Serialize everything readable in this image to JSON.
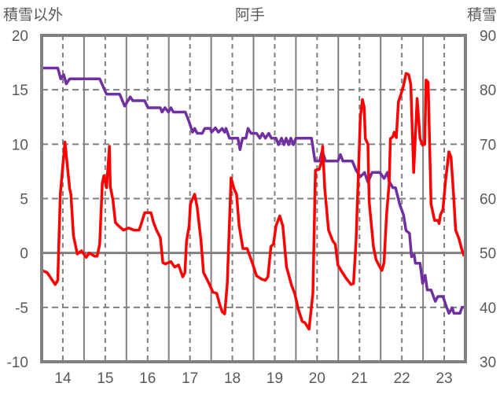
{
  "chart_data": {
    "type": "line",
    "title": "阿手",
    "ylabel_left": "積雪以外",
    "ylabel_right": "積雪",
    "xlabel": "",
    "x_tick_labels": [
      "14",
      "15",
      "16",
      "17",
      "18",
      "19",
      "20",
      "21",
      "22",
      "23"
    ],
    "x_tick_values": [
      14.5,
      15.5,
      16.5,
      17.5,
      18.5,
      19.5,
      20.5,
      21.5,
      22.5,
      23.5
    ],
    "xlim": [
      14,
      24
    ],
    "ylim_left": [
      -10,
      20
    ],
    "yticks_left": [
      20,
      15,
      10,
      5,
      0,
      -5,
      -10
    ],
    "ylim_right": [
      30,
      90
    ],
    "yticks_right": [
      90,
      80,
      70,
      60,
      50,
      40,
      30
    ],
    "grid": true,
    "legend": "none",
    "series": [
      {
        "name": "積雪以外",
        "axis": "left",
        "color": "#ff0000",
        "points": [
          [
            14.01,
            -1.6
          ],
          [
            14.13,
            -1.8
          ],
          [
            14.32,
            -2.9
          ],
          [
            14.38,
            -2.5
          ],
          [
            14.44,
            5.4
          ],
          [
            14.55,
            10.2
          ],
          [
            14.66,
            5.9
          ],
          [
            14.69,
            5.4
          ],
          [
            14.75,
            1.6
          ],
          [
            14.84,
            -0.1
          ],
          [
            14.94,
            0.2
          ],
          [
            15.05,
            -0.4
          ],
          [
            15.12,
            0
          ],
          [
            15.25,
            -0.3
          ],
          [
            15.31,
            -0.3
          ],
          [
            15.37,
            0.8
          ],
          [
            15.43,
            6.4
          ],
          [
            15.47,
            7.1
          ],
          [
            15.53,
            6.0
          ],
          [
            15.6,
            9.8
          ],
          [
            15.62,
            6.1
          ],
          [
            15.68,
            4.9
          ],
          [
            15.74,
            2.8
          ],
          [
            15.81,
            2.5
          ],
          [
            15.93,
            2.1
          ],
          [
            16.05,
            2.3
          ],
          [
            16.18,
            2.1
          ],
          [
            16.3,
            2.1
          ],
          [
            16.36,
            2.8
          ],
          [
            16.43,
            3.7
          ],
          [
            16.58,
            3.7
          ],
          [
            16.64,
            2.8
          ],
          [
            16.71,
            2.1
          ],
          [
            16.8,
            1.4
          ],
          [
            16.86,
            -0.9
          ],
          [
            16.92,
            -1.0
          ],
          [
            17.05,
            -0.8
          ],
          [
            17.14,
            -1.3
          ],
          [
            17.23,
            -1.1
          ],
          [
            17.33,
            -2.2
          ],
          [
            17.38,
            -1.8
          ],
          [
            17.42,
            1.1
          ],
          [
            17.48,
            2.5
          ],
          [
            17.51,
            4.5
          ],
          [
            17.61,
            5.4
          ],
          [
            17.67,
            4.2
          ],
          [
            17.76,
            1.1
          ],
          [
            17.82,
            -1.8
          ],
          [
            17.95,
            -2.8
          ],
          [
            18.04,
            -3.6
          ],
          [
            18.13,
            -3.7
          ],
          [
            18.2,
            -4.7
          ],
          [
            18.26,
            -5.4
          ],
          [
            18.32,
            -5.6
          ],
          [
            18.38,
            -2.8
          ],
          [
            18.47,
            6.9
          ],
          [
            18.54,
            5.9
          ],
          [
            18.6,
            5.4
          ],
          [
            18.66,
            2.5
          ],
          [
            18.75,
            0.4
          ],
          [
            18.85,
            0.4
          ],
          [
            18.97,
            -0.9
          ],
          [
            19.07,
            -2.1
          ],
          [
            19.19,
            -2.4
          ],
          [
            19.28,
            -2.5
          ],
          [
            19.34,
            -2.2
          ],
          [
            19.41,
            0.6
          ],
          [
            19.47,
            0.8
          ],
          [
            19.53,
            2.5
          ],
          [
            19.62,
            3.4
          ],
          [
            19.69,
            2.5
          ],
          [
            19.78,
            -1.3
          ],
          [
            19.9,
            -3.0
          ],
          [
            19.97,
            -3.7
          ],
          [
            20.06,
            -5.2
          ],
          [
            20.15,
            -6.3
          ],
          [
            20.21,
            -6.4
          ],
          [
            20.31,
            -7.0
          ],
          [
            20.4,
            -3.7
          ],
          [
            20.46,
            7.6
          ],
          [
            20.55,
            7.7
          ],
          [
            20.6,
            8.3
          ],
          [
            20.63,
            9.8
          ],
          [
            20.68,
            5.9
          ],
          [
            20.77,
            2.1
          ],
          [
            20.87,
            1.1
          ],
          [
            20.93,
            0.8
          ],
          [
            20.99,
            -1.1
          ],
          [
            21.08,
            -1.7
          ],
          [
            21.18,
            -2.3
          ],
          [
            21.3,
            -2.9
          ],
          [
            21.36,
            -2.8
          ],
          [
            21.42,
            1.1
          ],
          [
            21.52,
            12.4
          ],
          [
            21.57,
            14.1
          ],
          [
            21.61,
            13.4
          ],
          [
            21.64,
            10.5
          ],
          [
            21.7,
            10.0
          ],
          [
            21.73,
            4.7
          ],
          [
            21.83,
            0.6
          ],
          [
            21.89,
            -0.6
          ],
          [
            21.98,
            -1.3
          ],
          [
            22.03,
            -1.6
          ],
          [
            22.08,
            -0.9
          ],
          [
            22.14,
            3.5
          ],
          [
            22.2,
            6.4
          ],
          [
            22.23,
            10.5
          ],
          [
            22.29,
            10.7
          ],
          [
            22.32,
            11.1
          ],
          [
            22.37,
            10.6
          ],
          [
            22.42,
            13.9
          ],
          [
            22.48,
            14.6
          ],
          [
            22.54,
            15.4
          ],
          [
            22.6,
            16.5
          ],
          [
            22.66,
            16.4
          ],
          [
            22.71,
            15.5
          ],
          [
            22.78,
            7.4
          ],
          [
            22.86,
            14.2
          ],
          [
            22.93,
            10.5
          ],
          [
            22.99,
            9.9
          ],
          [
            23.04,
            10.0
          ],
          [
            23.07,
            15.9
          ],
          [
            23.12,
            15.7
          ],
          [
            23.19,
            4.5
          ],
          [
            23.27,
            3.0
          ],
          [
            23.35,
            3.0
          ],
          [
            23.38,
            2.7
          ],
          [
            23.41,
            3.5
          ],
          [
            23.47,
            4.0
          ],
          [
            23.53,
            6.6
          ],
          [
            23.61,
            9.3
          ],
          [
            23.66,
            8.8
          ],
          [
            23.72,
            5.4
          ],
          [
            23.77,
            2.1
          ],
          [
            23.85,
            1.3
          ],
          [
            23.91,
            0.4
          ],
          [
            23.97,
            -0.3
          ]
        ]
      },
      {
        "name": "積雪",
        "axis": "right",
        "color": "#7030a0",
        "points": [
          [
            14.01,
            84
          ],
          [
            14.38,
            84
          ],
          [
            14.45,
            82
          ],
          [
            14.52,
            82.8
          ],
          [
            14.58,
            81.1
          ],
          [
            14.66,
            82
          ],
          [
            15.37,
            82
          ],
          [
            15.53,
            79.2
          ],
          [
            15.84,
            79.2
          ],
          [
            15.96,
            77
          ],
          [
            16.09,
            78.7
          ],
          [
            16.15,
            78
          ],
          [
            16.43,
            78
          ],
          [
            16.49,
            77
          ],
          [
            16.52,
            76.7
          ],
          [
            16.8,
            76.7
          ],
          [
            16.84,
            75.9
          ],
          [
            16.91,
            76.7
          ],
          [
            16.99,
            75.9
          ],
          [
            17.05,
            76.7
          ],
          [
            17.11,
            75.9
          ],
          [
            17.39,
            75.9
          ],
          [
            17.48,
            74.1
          ],
          [
            17.56,
            72.2
          ],
          [
            17.61,
            72.9
          ],
          [
            17.67,
            72.0
          ],
          [
            17.79,
            72.0
          ],
          [
            17.85,
            72.9
          ],
          [
            17.98,
            72.9
          ],
          [
            18.01,
            72.2
          ],
          [
            18.1,
            73
          ],
          [
            18.17,
            72.2
          ],
          [
            18.26,
            72.9
          ],
          [
            18.32,
            72.2
          ],
          [
            18.35,
            72.9
          ],
          [
            18.43,
            71.1
          ],
          [
            18.63,
            71.1
          ],
          [
            18.68,
            69.0
          ],
          [
            18.74,
            71.1
          ],
          [
            18.82,
            71.1
          ],
          [
            18.87,
            72.9
          ],
          [
            18.94,
            72
          ],
          [
            19.07,
            72
          ],
          [
            19.15,
            71.1
          ],
          [
            19.21,
            72
          ],
          [
            19.28,
            71.1
          ],
          [
            19.36,
            72
          ],
          [
            19.42,
            71.1
          ],
          [
            19.53,
            71.1
          ],
          [
            19.59,
            69.9
          ],
          [
            19.66,
            71.1
          ],
          [
            19.72,
            69.9
          ],
          [
            19.77,
            71.1
          ],
          [
            19.83,
            69.9
          ],
          [
            19.88,
            71.1
          ],
          [
            19.94,
            69.9
          ],
          [
            20.0,
            71.1
          ],
          [
            20.37,
            71.1
          ],
          [
            20.45,
            66.9
          ],
          [
            20.56,
            66.9
          ],
          [
            20.62,
            68.8
          ],
          [
            20.7,
            66.9
          ],
          [
            20.99,
            66.9
          ],
          [
            21.05,
            68.1
          ],
          [
            21.11,
            66.9
          ],
          [
            21.33,
            66.9
          ],
          [
            21.42,
            65.2
          ],
          [
            21.52,
            64
          ],
          [
            21.62,
            64.8
          ],
          [
            21.7,
            63
          ],
          [
            21.8,
            64.8
          ],
          [
            21.98,
            64.8
          ],
          [
            22.08,
            63.7
          ],
          [
            22.16,
            64.8
          ],
          [
            22.2,
            63.2
          ],
          [
            22.29,
            62
          ],
          [
            22.35,
            62
          ],
          [
            22.45,
            58.9
          ],
          [
            22.54,
            57
          ],
          [
            22.6,
            54.1
          ],
          [
            22.68,
            53.6
          ],
          [
            22.73,
            49.3
          ],
          [
            22.79,
            49.7
          ],
          [
            22.82,
            48.1
          ],
          [
            22.93,
            48.1
          ],
          [
            22.99,
            44.4
          ],
          [
            23.05,
            45.9
          ],
          [
            23.1,
            43.2
          ],
          [
            23.19,
            43.2
          ],
          [
            23.29,
            41.1
          ],
          [
            23.35,
            42.0
          ],
          [
            23.47,
            42.0
          ],
          [
            23.53,
            40.6
          ],
          [
            23.61,
            38.9
          ],
          [
            23.69,
            39.9
          ],
          [
            23.73,
            38.9
          ],
          [
            23.87,
            38.9
          ],
          [
            23.92,
            40
          ],
          [
            23.98,
            40
          ]
        ]
      }
    ]
  },
  "colors": {
    "axis": "#808080",
    "text": "#595959",
    "grid_light": "#d9d9d9"
  }
}
